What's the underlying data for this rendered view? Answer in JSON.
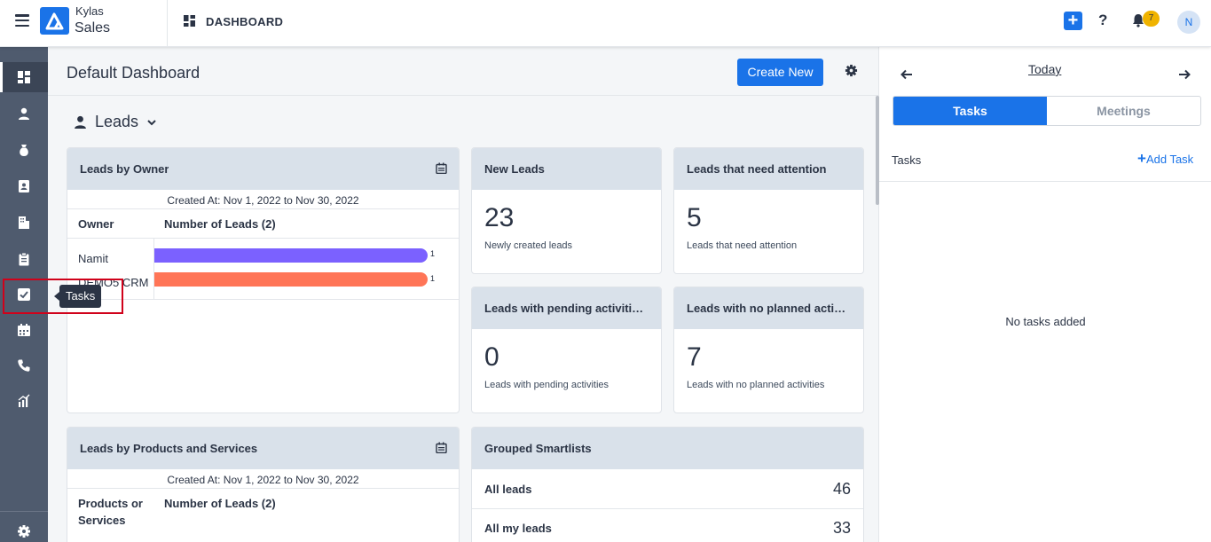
{
  "app": {
    "brand_top": "Kylas",
    "brand_bottom": "Sales",
    "section": "DASHBOARD",
    "notification_count": "7",
    "avatar_initial": "N"
  },
  "sidebar": {
    "tooltip": "Tasks"
  },
  "main": {
    "title": "Default Dashboard",
    "create_button": "Create New",
    "section_label": "Leads",
    "leads_by_owner": {
      "title": "Leads by Owner",
      "subtitle": "Created At: Nov 1, 2022 to Nov 30, 2022",
      "col_owner": "Owner",
      "col_count": "Number of Leads (2)",
      "rows": [
        {
          "name": "Namit",
          "value": "1",
          "color": "#7b61ff",
          "fraction": 1.0
        },
        {
          "name": "DEMO5 CRM",
          "value": "1",
          "color": "#ff7557",
          "fraction": 1.0
        }
      ]
    },
    "kpis": [
      {
        "title": "New Leads",
        "value": "23",
        "desc": "Newly created leads"
      },
      {
        "title": "Leads that need attention",
        "value": "5",
        "desc": "Leads that need attention"
      },
      {
        "title": "Leads with pending activiti…",
        "value": "0",
        "desc": "Leads with pending activities"
      },
      {
        "title": "Leads with no planned acti…",
        "value": "7",
        "desc": "Leads with no planned activities"
      }
    ],
    "leads_by_products": {
      "title": "Leads by Products and Services",
      "subtitle": "Created At: Nov 1, 2022 to Nov 30, 2022",
      "col_products_1": "Products or",
      "col_products_2": "Services",
      "col_count": "Number of Leads (2)"
    },
    "smartlists": {
      "title": "Grouped Smartlists",
      "items": [
        {
          "label": "All leads",
          "count": "46"
        },
        {
          "label": "All my leads",
          "count": "33"
        }
      ]
    }
  },
  "right_panel": {
    "date_label": "Today",
    "tabs": [
      "Tasks",
      "Meetings"
    ],
    "section_label": "Tasks",
    "add_task": "Add Task",
    "empty_text": "No tasks added"
  },
  "colors": {
    "accent": "#1a73e8",
    "sidebar": "#4f5b6e",
    "card_header": "#d9e1ea",
    "badge": "#f0b300"
  }
}
